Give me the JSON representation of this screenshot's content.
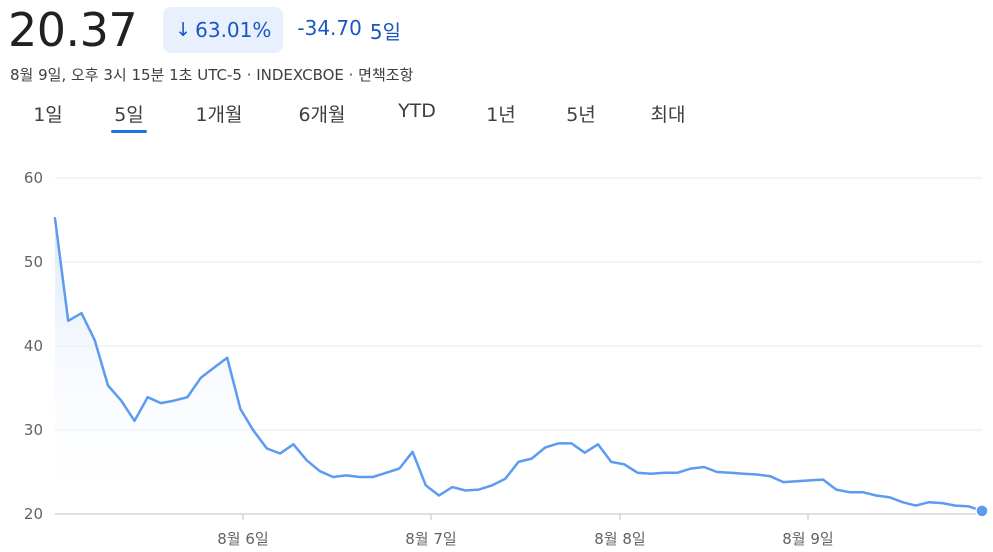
{
  "quote": {
    "price": "20.37",
    "change_pct": "63.01%",
    "change_direction": "down",
    "change_abs": "-34.70",
    "period": "5일",
    "meta": "8월 9일, 오후 3시 15분 1초 UTC-5 · INDEXCBOE · 면책조항"
  },
  "tabs": [
    {
      "label": "1일",
      "active": false
    },
    {
      "label": "5일",
      "active": true
    },
    {
      "label": "1개월",
      "active": false
    },
    {
      "label": "6개월",
      "active": false
    },
    {
      "label": "YTD",
      "active": false
    },
    {
      "label": "1년",
      "active": false
    },
    {
      "label": "5년",
      "active": false
    },
    {
      "label": "최대",
      "active": false
    }
  ],
  "colors": {
    "accent": "#1a73e8",
    "line": "#5b9bf0",
    "negative": "#1a56c4",
    "badge_bg": "#e8f0fe",
    "grid": "#e8eaed"
  },
  "chart_data": {
    "type": "area",
    "ylim": [
      20,
      60
    ],
    "y_ticks": [
      "60",
      "50",
      "40",
      "30",
      "20"
    ],
    "x_tick_labels": [
      "8월 6일",
      "8월 7일",
      "8월 8일",
      "8월 9일"
    ],
    "x_tick_positions": [
      12.5,
      25,
      37.5,
      50
    ],
    "xlim": [
      0,
      61
    ],
    "grid": true,
    "values": [
      55.2,
      43.0,
      43.9,
      40.7,
      35.3,
      33.5,
      31.1,
      33.9,
      33.2,
      33.5,
      33.9,
      36.2,
      37.4,
      38.6,
      32.5,
      29.9,
      27.8,
      27.2,
      28.3,
      26.4,
      25.1,
      24.4,
      24.6,
      24.4,
      24.4,
      24.9,
      25.4,
      27.4,
      23.4,
      22.2,
      23.2,
      22.8,
      22.9,
      23.4,
      24.2,
      26.2,
      26.6,
      27.9,
      28.4,
      28.4,
      27.3,
      28.3,
      26.2,
      25.9,
      24.9,
      24.8,
      24.9,
      24.9,
      25.4,
      25.6,
      25.0,
      24.9,
      24.8,
      24.7,
      24.5,
      23.8,
      23.9,
      24.0,
      24.1,
      22.9,
      22.6,
      22.6,
      22.2,
      22.0,
      21.4,
      21.0,
      21.4,
      21.3,
      21.0,
      20.9,
      20.37
    ]
  }
}
